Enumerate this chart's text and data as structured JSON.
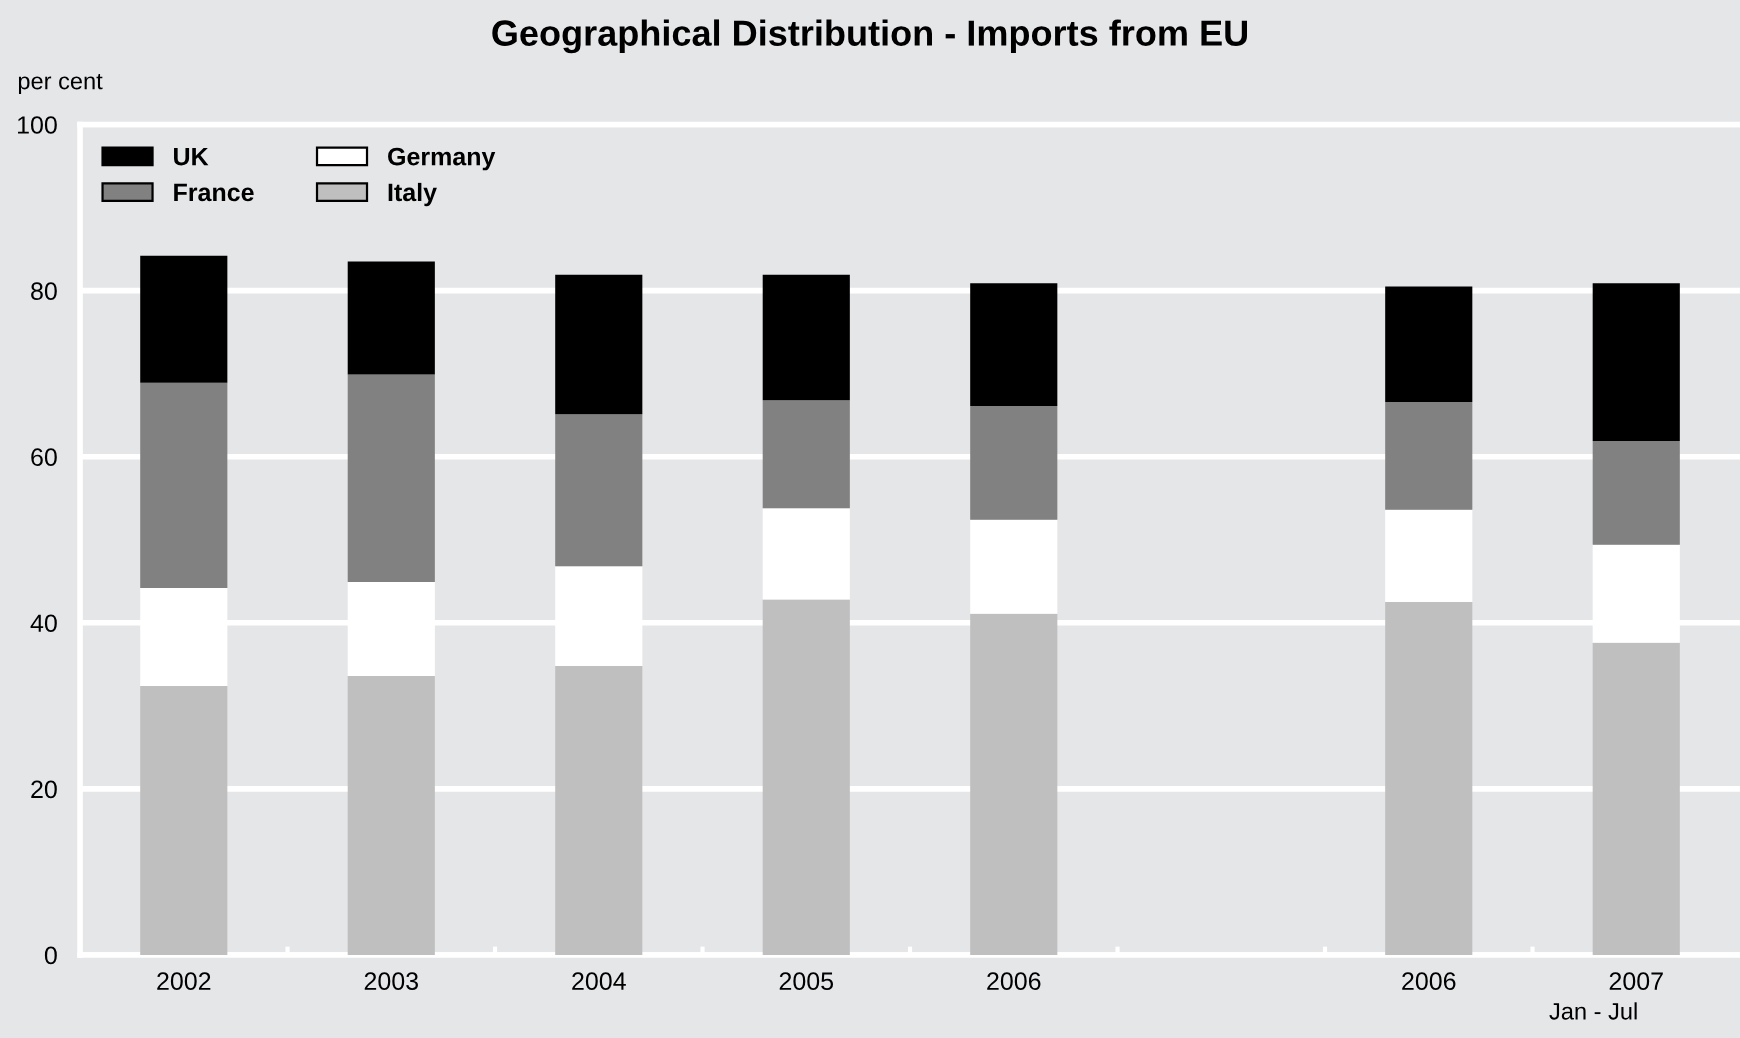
{
  "chart_data": {
    "type": "bar",
    "title": "Geographical Distribution - Imports from EU",
    "ylabel": "per cent",
    "stacked": true,
    "categories": [
      "2002",
      "2003",
      "2004",
      "2005",
      "2006",
      null,
      "2006",
      "2007"
    ],
    "series": [
      {
        "name": "Italy",
        "color": "#bfbfbf",
        "values": [
          32.4,
          33.6,
          34.8,
          42.8,
          41.1,
          null,
          42.5,
          37.6
        ]
      },
      {
        "name": "Germany",
        "color": "#ffffff",
        "values": [
          11.8,
          11.3,
          12.0,
          11.0,
          11.3,
          null,
          11.1,
          11.8
        ]
      },
      {
        "name": "France",
        "color": "#818181",
        "values": [
          24.7,
          25.0,
          18.3,
          13.0,
          13.7,
          null,
          13.0,
          12.5
        ]
      },
      {
        "name": "UK",
        "color": "#000000",
        "values": [
          15.3,
          13.6,
          16.8,
          15.1,
          14.8,
          null,
          13.9,
          19.0
        ]
      }
    ],
    "ylim": [
      0,
      100
    ],
    "yticks": [
      0,
      20,
      40,
      60,
      80,
      100
    ],
    "grid": "y",
    "legend": "top left",
    "annotations": [
      "Jan - Jul"
    ]
  }
}
